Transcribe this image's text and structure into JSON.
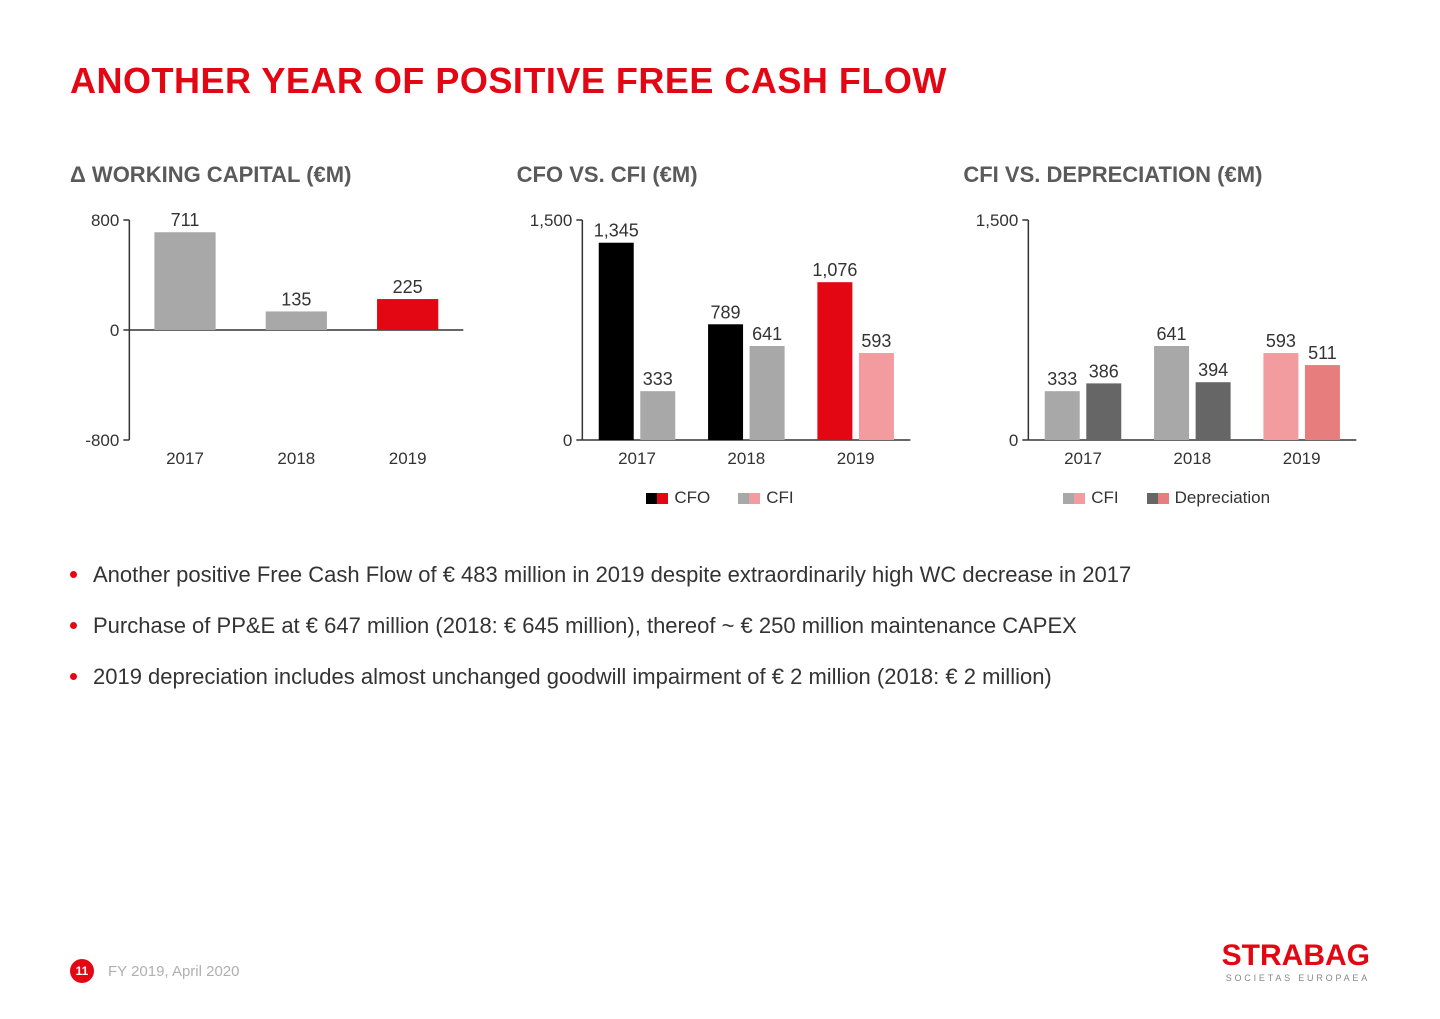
{
  "colors": {
    "accent_red": "#e30613",
    "gray_bar": "#a8a8a8",
    "gray_dark_bar": "#666666",
    "black_bar": "#000000",
    "pink_bar": "#f39ca0",
    "salmon_bar": "#e87d7d",
    "text_gray": "#5a5a5a",
    "axis": "#333333"
  },
  "page": {
    "title": "ANOTHER YEAR OF POSITIVE FREE CASH FLOW",
    "title_color": "#e30613"
  },
  "chart1": {
    "type": "bar",
    "title": "Δ WORKING CAPITAL (€M)",
    "title_fontsize": 22,
    "categories": [
      "2017",
      "2018",
      "2019"
    ],
    "values": [
      711,
      135,
      225
    ],
    "bar_colors": [
      "#a8a8a8",
      "#a8a8a8",
      "#e30613"
    ],
    "ymin": -800,
    "ymax": 800,
    "yticks": [
      -800,
      0,
      800
    ],
    "bar_width": 0.55,
    "label_fontsize": 18,
    "axis_color": "#333333"
  },
  "chart2": {
    "type": "grouped-bar",
    "title": "CFO VS. CFI (€M)",
    "title_fontsize": 22,
    "categories": [
      "2017",
      "2018",
      "2019"
    ],
    "series": [
      {
        "name": "CFO",
        "values": [
          1345,
          789,
          1076
        ],
        "colors": [
          "#000000",
          "#000000",
          "#e30613"
        ]
      },
      {
        "name": "CFI",
        "values": [
          333,
          641,
          593
        ],
        "colors": [
          "#a8a8a8",
          "#a8a8a8",
          "#f39ca0"
        ]
      }
    ],
    "ymin": 0,
    "ymax": 1500,
    "yticks": [
      0,
      1500
    ],
    "bar_gap": 0.06,
    "group_width": 0.7,
    "legend": [
      {
        "label": "CFO",
        "swatches": [
          "#000000",
          "#e30613"
        ]
      },
      {
        "label": "CFI",
        "swatches": [
          "#a8a8a8",
          "#f39ca0"
        ]
      }
    ],
    "label_fontsize": 18,
    "axis_color": "#333333"
  },
  "chart3": {
    "type": "grouped-bar",
    "title": "CFI VS. DEPRECIATION (€M)",
    "title_fontsize": 22,
    "categories": [
      "2017",
      "2018",
      "2019"
    ],
    "series": [
      {
        "name": "CFI",
        "values": [
          333,
          641,
          593
        ],
        "colors": [
          "#a8a8a8",
          "#a8a8a8",
          "#f39ca0"
        ]
      },
      {
        "name": "Depreciation",
        "values": [
          386,
          394,
          511
        ],
        "colors": [
          "#666666",
          "#666666",
          "#e87d7d"
        ]
      }
    ],
    "ymin": 0,
    "ymax": 1500,
    "yticks": [
      0,
      1500
    ],
    "bar_gap": 0.06,
    "group_width": 0.7,
    "legend": [
      {
        "label": "CFI",
        "swatches": [
          "#a8a8a8",
          "#f39ca0"
        ]
      },
      {
        "label": "Depreciation",
        "swatches": [
          "#666666",
          "#e87d7d"
        ]
      }
    ],
    "label_fontsize": 18,
    "axis_color": "#333333"
  },
  "bullets": [
    "Another positive Free Cash Flow of € 483 million in 2019 despite extraordinarily high WC decrease in 2017",
    "Purchase of PP&E at € 647 million (2018: € 645 million), thereof ~ € 250 million maintenance CAPEX",
    "2019 depreciation includes almost unchanged goodwill impairment of € 2 million (2018: € 2 million)"
  ],
  "bullet_dot_color": "#e30613",
  "footer": {
    "page_number": "11",
    "badge_color": "#e30613",
    "text": "FY 2019, April 2020",
    "logo_main": "STRABAG",
    "logo_main_color": "#e30613",
    "logo_sub": "SOCIETAS EUROPAEA"
  }
}
